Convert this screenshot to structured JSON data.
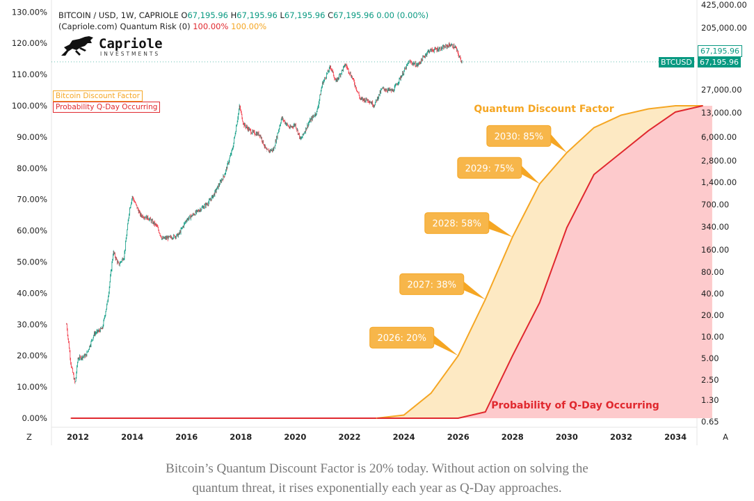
{
  "header": {
    "symbol": "BITCOIN / USD, 1W, CAPRIOLE",
    "o_label": "O",
    "o_val": "67,195.96",
    "h_label": "H",
    "h_val": "67,195.96",
    "l_label": "L",
    "l_val": "67,195.96",
    "c_label": "C",
    "c_val": "67,195.96",
    "change": "0.00 (0.00%)",
    "indicator": "(Capriole.com) Quantum Risk (0)",
    "ind_val1": "100.00%",
    "ind_val2": "100.00%"
  },
  "logo": {
    "name": "Capriole",
    "sub": "INVESTMENTS"
  },
  "series_keys": {
    "discount": "Bitcoin Discount Factor",
    "probability": "Probability Q-Day Occurring"
  },
  "price_tags": {
    "current": "67,195.96",
    "ticker": "BTCUSD",
    "ticker_value": "67,195.96"
  },
  "axis_corners": {
    "left": "Z",
    "right": "A"
  },
  "caption": {
    "line1": "Bitcoin’s Quantum Discount Factor is 20% today. Without action on solving the",
    "line2": "quantum threat, it rises exponentially each year as Q-Day approaches."
  },
  "colors": {
    "discount": "#f5a623",
    "discount_fill": "#fde9c3",
    "probability": "#e0282e",
    "probability_fill": "#fdcacc",
    "btc_up": "#089981",
    "btc_down": "#f23645"
  },
  "chart_data": {
    "type": "line",
    "title": "",
    "x_ticks": [
      "2012",
      "2014",
      "2016",
      "2018",
      "2020",
      "2022",
      "2024",
      "2026",
      "2028",
      "2030",
      "2032",
      "2034"
    ],
    "x_range": [
      2011.75,
      2035.35
    ],
    "y_left_ticks": [
      "130.00%",
      "120.00%",
      "110.00%",
      "100.00%",
      "90.00%",
      "80.00%",
      "70.00%",
      "60.00%",
      "50.00%",
      "40.00%",
      "30.00%",
      "20.00%",
      "10.00%",
      "0.00%"
    ],
    "y_left_range": [
      0,
      130
    ],
    "y_right_ticks": [
      "425,000.00",
      "205,000.00",
      "27,000.00",
      "13,000.00",
      "6,000.00",
      "2,800.00",
      "1,400.00",
      "700.00",
      "340.00",
      "160.00",
      "80.00",
      "40.00",
      "20.00",
      "10.00",
      "5.00",
      "2.50",
      "1.30",
      "0.65"
    ],
    "y_right_scale": "log",
    "y_right_range": [
      0.65,
      425000
    ],
    "series": [
      {
        "name": "Bitcoin Discount Factor",
        "x": [
          2011.75,
          2023.0,
          2024.0,
          2025.0,
          2026.0,
          2027.0,
          2028.0,
          2029.0,
          2030.0,
          2031.0,
          2032.0,
          2033.0,
          2034.0,
          2035.0
        ],
        "values": [
          0,
          0,
          1,
          8,
          20,
          38,
          58,
          75,
          85,
          93,
          97,
          99,
          100,
          100
        ]
      },
      {
        "name": "Probability Q-Day Occurring",
        "x": [
          2011.75,
          2026.0,
          2027.0,
          2028.0,
          2029.0,
          2030.0,
          2031.0,
          2032.0,
          2033.0,
          2034.0,
          2035.0
        ],
        "values": [
          0,
          0,
          2,
          20,
          37,
          61,
          78,
          85,
          92,
          98,
          100
        ]
      },
      {
        "name": "BITCOIN / USD",
        "x": [
          2011.58,
          2011.75,
          2011.9,
          2012.0,
          2012.3,
          2012.6,
          2012.9,
          2013.1,
          2013.3,
          2013.5,
          2013.7,
          2013.9,
          2014.0,
          2014.3,
          2014.6,
          2014.9,
          2015.1,
          2015.4,
          2015.7,
          2016.0,
          2016.4,
          2016.8,
          2017.0,
          2017.4,
          2017.7,
          2017.95,
          2018.1,
          2018.4,
          2018.7,
          2018.95,
          2019.2,
          2019.5,
          2019.8,
          2020.0,
          2020.2,
          2020.5,
          2020.8,
          2021.0,
          2021.3,
          2021.5,
          2021.85,
          2022.1,
          2022.4,
          2022.7,
          2022.9,
          2023.2,
          2023.6,
          2023.9,
          2024.2,
          2024.5,
          2024.9,
          2025.1,
          2025.4,
          2025.7,
          2025.9,
          2026.05,
          2026.15
        ],
        "values": [
          15,
          4,
          2.2,
          5,
          5.5,
          11,
          13,
          33,
          150,
          100,
          130,
          600,
          900,
          500,
          450,
          350,
          230,
          240,
          260,
          430,
          560,
          740,
          950,
          1800,
          4200,
          16000,
          9000,
          7000,
          6500,
          3800,
          4000,
          11000,
          8000,
          9000,
          5500,
          9500,
          13500,
          33000,
          58000,
          35000,
          62000,
          40000,
          20000,
          19500,
          16500,
          28000,
          26000,
          42000,
          68000,
          60000,
          96000,
          100000,
          105000,
          118000,
          108000,
          78000,
          67195.96
        ]
      }
    ],
    "annotations": [
      {
        "text": "2026: 20%",
        "x": 2026.0,
        "y": 20
      },
      {
        "text": "2027: 38%",
        "x": 2027.0,
        "y": 38
      },
      {
        "text": "2028: 58%",
        "x": 2028.0,
        "y": 58
      },
      {
        "text": "2029: 75%",
        "x": 2029.0,
        "y": 75
      },
      {
        "text": "2030: 85%",
        "x": 2030.0,
        "y": 85
      }
    ],
    "area_labels": {
      "discount": "Quantum Discount Factor",
      "probability": "Probability of Q-Day Occurring"
    },
    "grid": false,
    "legend": "top-left"
  }
}
